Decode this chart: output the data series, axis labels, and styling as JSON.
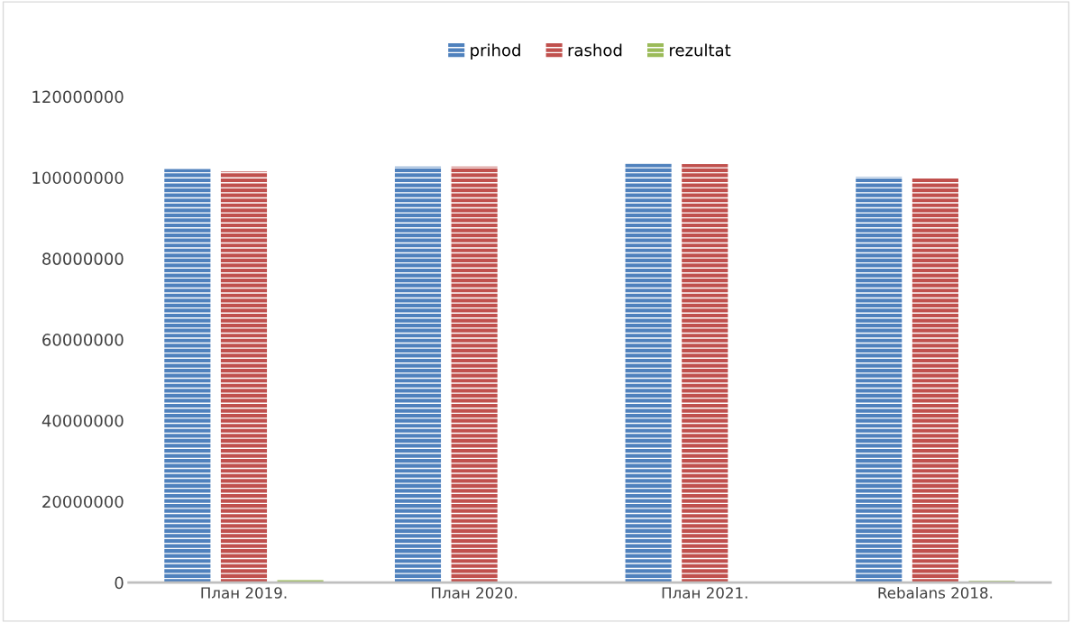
{
  "chart_data": {
    "type": "bar",
    "categories": [
      "План 2019.",
      "План 2020.",
      "План 2021.",
      "Rebalans 2018."
    ],
    "series": [
      {
        "name": "prihod",
        "color": "#4f81bd",
        "values": [
          102100000,
          102700000,
          103400000,
          100200000
        ]
      },
      {
        "name": "rashod",
        "color": "#c0504d",
        "values": [
          101500000,
          102700000,
          103300000,
          99800000
        ]
      },
      {
        "name": "rezultat",
        "color": "#9bbb59",
        "values": [
          600000,
          0,
          0,
          400000
        ]
      }
    ],
    "ylim": [
      0,
      120000000
    ],
    "yticks": [
      0,
      20000000,
      40000000,
      60000000,
      80000000,
      100000000,
      120000000
    ],
    "grid": false,
    "legend": "top"
  }
}
